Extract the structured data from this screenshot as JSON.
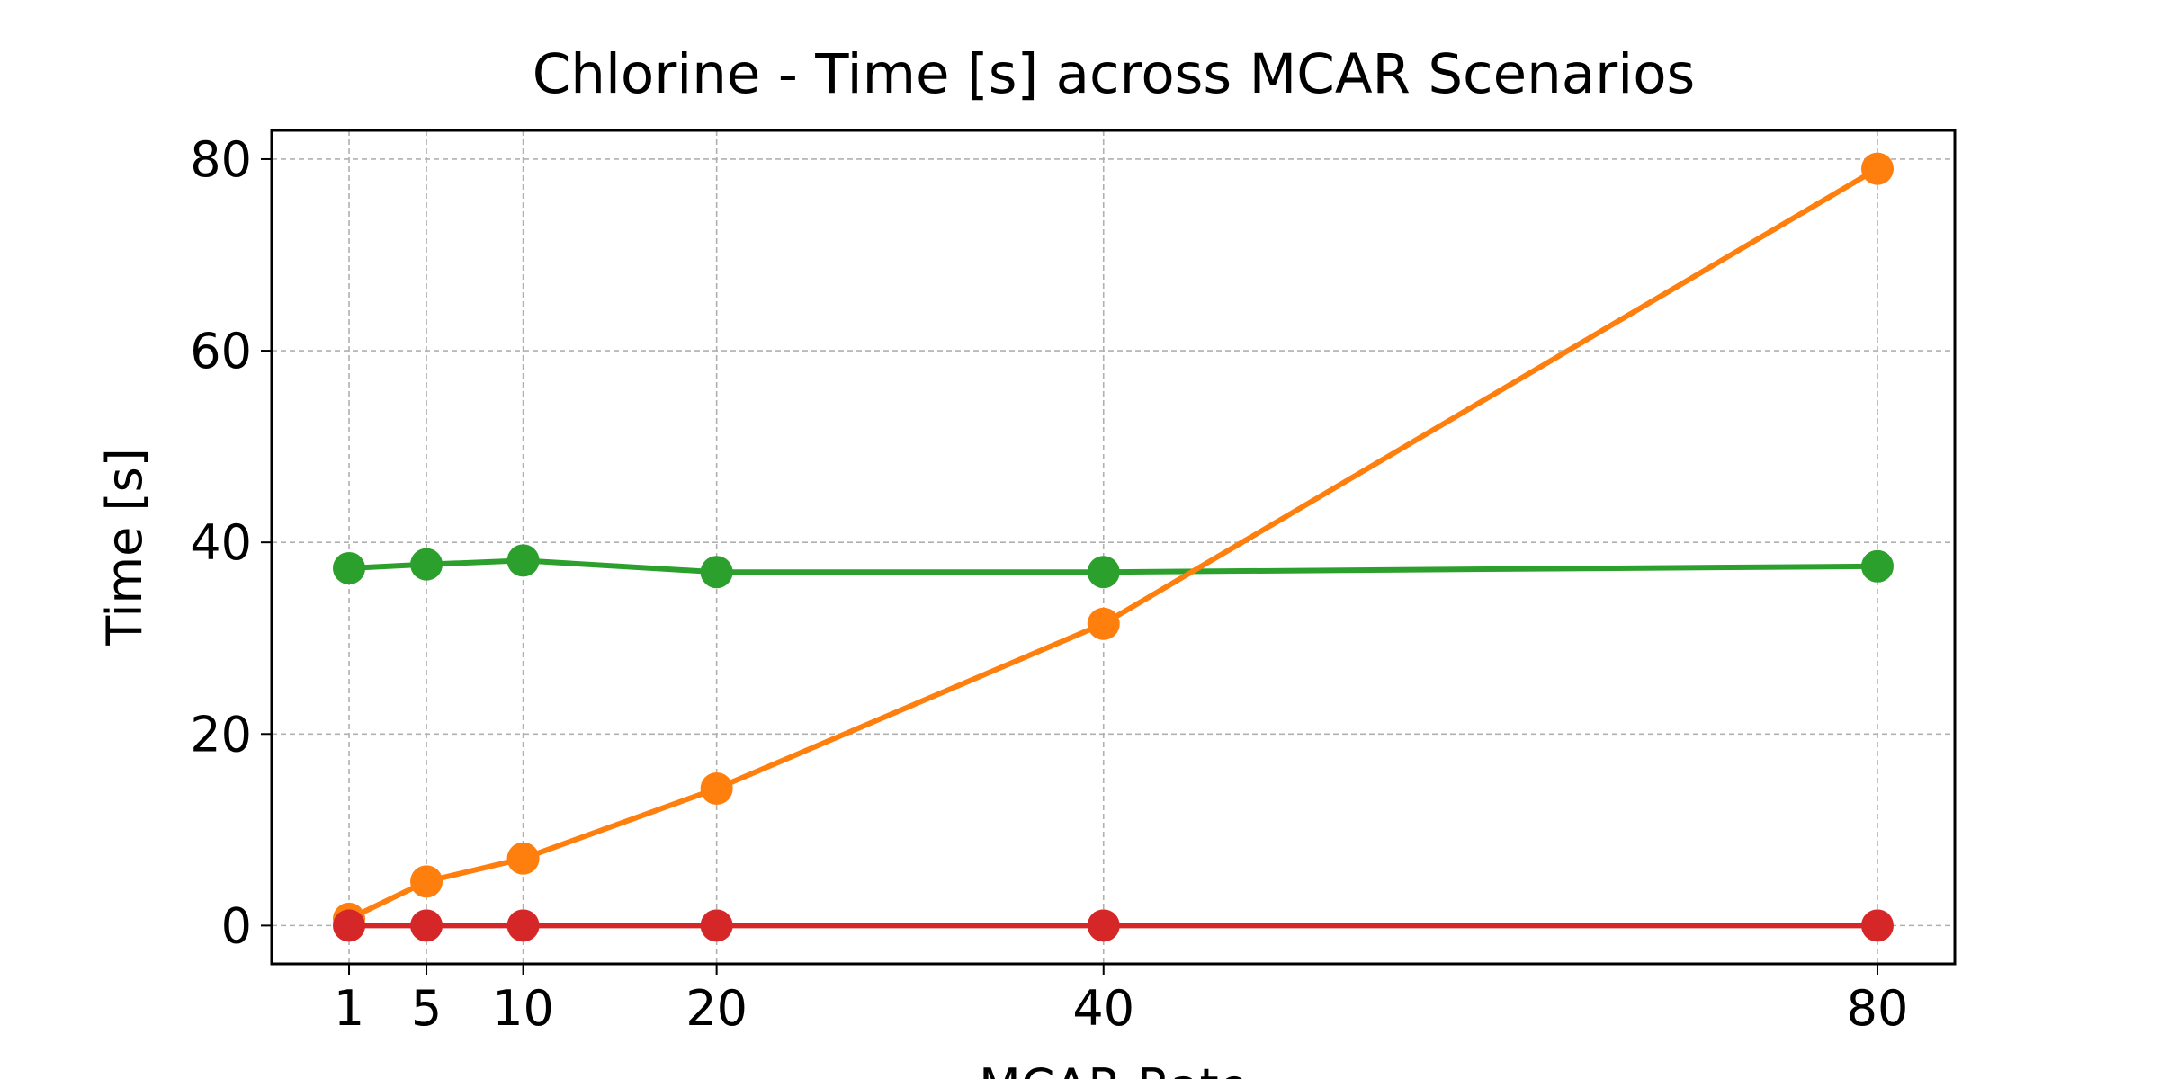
{
  "chart_data": {
    "type": "line",
    "title": "Chlorine - Time [s] across MCAR Scenarios",
    "xlabel": "MCAR Rate",
    "ylabel": "Time [s]",
    "x": [
      1,
      5,
      10,
      20,
      40,
      80
    ],
    "xticks": [
      "1",
      "5",
      "10",
      "20",
      "40",
      "80"
    ],
    "yticks": [
      "0",
      "20",
      "40",
      "60",
      "80"
    ],
    "xlim": [
      -3,
      84
    ],
    "ylim": [
      -4,
      83
    ],
    "grid": true,
    "series": [
      {
        "color": "#2ca02c",
        "values": [
          37.3,
          37.7,
          38.1,
          36.9,
          36.9,
          37.5
        ]
      },
      {
        "color": "#ff7f0e",
        "values": [
          0.7,
          4.6,
          7.0,
          14.3,
          31.5,
          79.0
        ]
      },
      {
        "color": "#d62728",
        "values": [
          0.0,
          0.0,
          0.0,
          0.0,
          0.0,
          0.0
        ]
      }
    ]
  }
}
